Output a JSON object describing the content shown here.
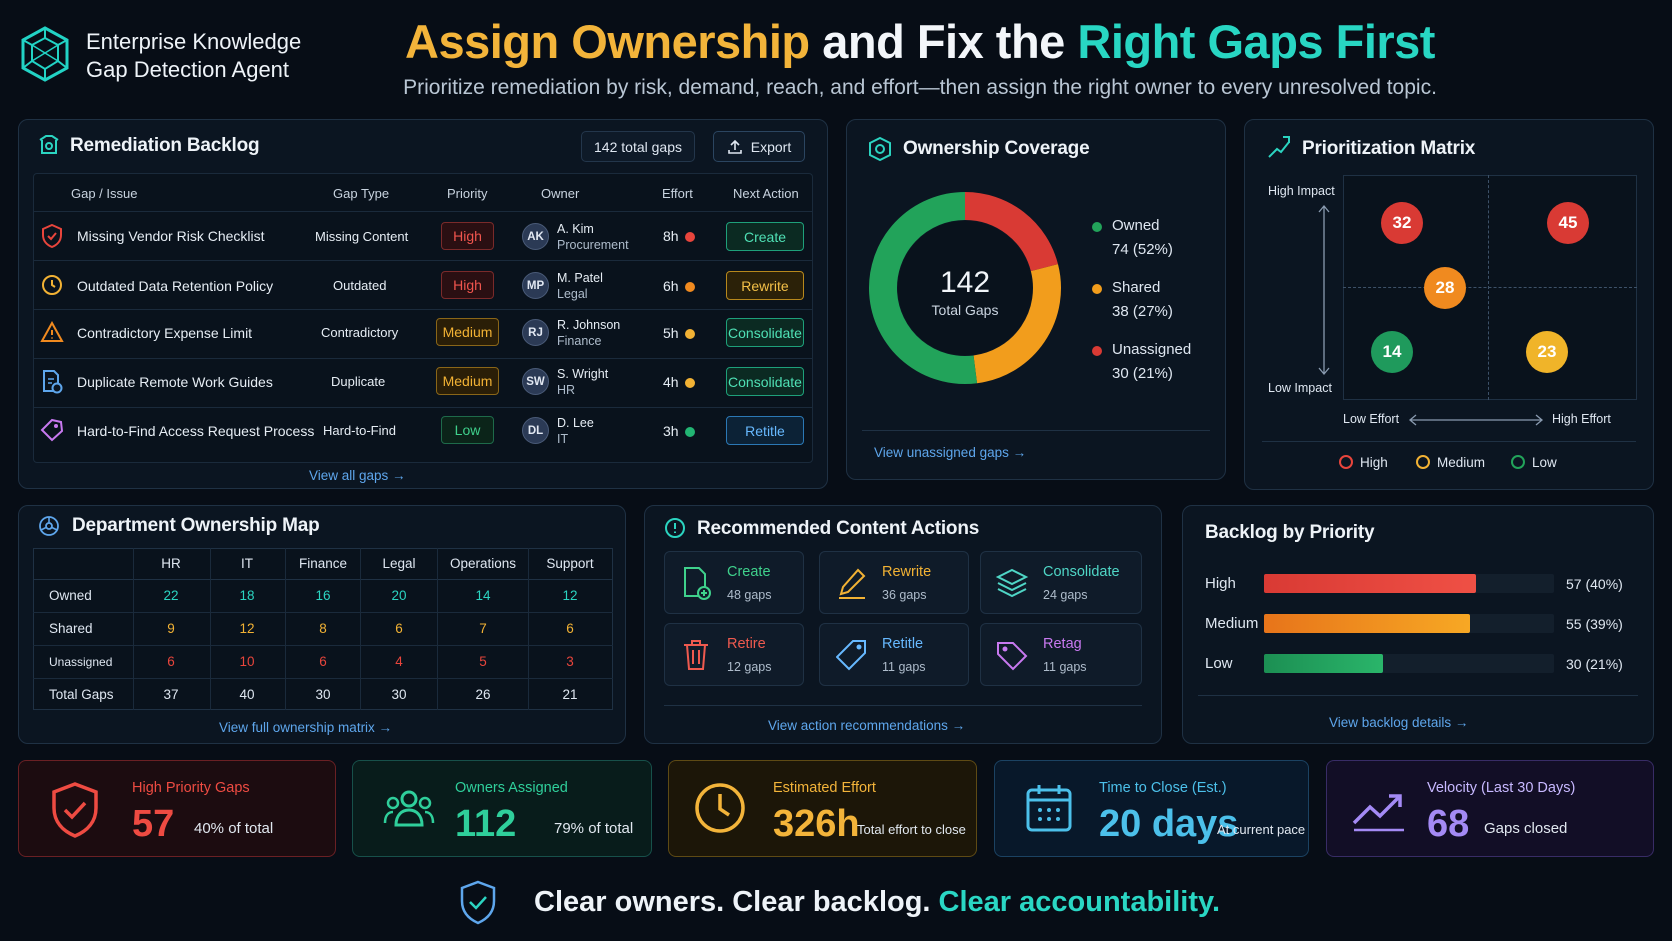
{
  "header": {
    "brand_line1": "Enterprise Knowledge",
    "brand_line2": "Gap Detection Agent",
    "title_part1": "Assign Ownership",
    "title_part2": "and Fix the",
    "title_part3": "Right Gaps First",
    "subtitle": "Prioritize remediation by risk, demand, reach, and effort—then assign the right owner to every unresolved topic."
  },
  "backlog": {
    "title": "Remediation Backlog",
    "total_badge": "142 total gaps",
    "export_label": "Export",
    "columns": [
      "Gap / Issue",
      "Gap Type",
      "Priority",
      "Owner",
      "Effort",
      "Next Action"
    ],
    "rows": [
      {
        "issue": "Missing Vendor Risk Checklist",
        "type": "Missing Content",
        "priority": "High",
        "initials": "AK",
        "owner": "A. Kim",
        "dept": "Procurement",
        "effort": "8h",
        "effort_color": "#e8453c",
        "action": "Create",
        "icon": "shield-alert-icon"
      },
      {
        "issue": "Outdated Data Retention Policy",
        "type": "Outdated",
        "priority": "High",
        "initials": "MP",
        "owner": "M. Patel",
        "dept": "Legal",
        "effort": "6h",
        "effort_color": "#f08a1f",
        "action": "Rewrite",
        "icon": "clock-icon"
      },
      {
        "issue": "Contradictory Expense Limit",
        "type": "Contradictory",
        "priority": "Medium",
        "initials": "RJ",
        "owner": "R. Johnson",
        "dept": "Finance",
        "effort": "5h",
        "effort_color": "#f2b234",
        "action": "Consolidate",
        "icon": "warning-icon"
      },
      {
        "issue": "Duplicate Remote Work Guides",
        "type": "Duplicate",
        "priority": "Medium",
        "initials": "SW",
        "owner": "S. Wright",
        "dept": "HR",
        "effort": "4h",
        "effort_color": "#f2b234",
        "action": "Consolidate",
        "icon": "duplicate-doc-icon"
      },
      {
        "issue": "Hard-to-Find Access Request Process",
        "type": "Hard-to-Find",
        "priority": "Low",
        "initials": "DL",
        "owner": "D. Lee",
        "dept": "IT",
        "effort": "3h",
        "effort_color": "#22b573",
        "action": "Retitle",
        "icon": "tag-search-icon"
      }
    ],
    "view_all": "View all gaps →"
  },
  "ownership": {
    "title": "Ownership Coverage",
    "total": "142",
    "total_label": "Total Gaps",
    "segments": [
      {
        "label": "Owned",
        "value": "74 (52%)",
        "fraction": 0.52,
        "color": "#22a35a"
      },
      {
        "label": "Shared",
        "value": "38 (27%)",
        "fraction": 0.27,
        "color": "#f29d1c"
      },
      {
        "label": "Unassigned",
        "value": "30 (21%)",
        "fraction": 0.21,
        "color": "#d93a34"
      }
    ],
    "link": "View unassigned gaps →"
  },
  "matrix": {
    "title": "Prioritization Matrix",
    "high_impact": "High Impact",
    "low_impact": "Low Impact",
    "low_effort": "Low Effort",
    "high_effort": "High Effort",
    "bubbles": [
      {
        "value": "32",
        "color": "#d93a34"
      },
      {
        "value": "45",
        "color": "#d93a34"
      },
      {
        "value": "28",
        "color": "#f08a1f"
      },
      {
        "value": "14",
        "color": "#1f9a5c"
      },
      {
        "value": "23",
        "color": "#f0b429"
      }
    ],
    "legend": [
      "High",
      "Medium",
      "Low"
    ]
  },
  "department": {
    "title": "Department Ownership Map",
    "columns": [
      "HR",
      "IT",
      "Finance",
      "Legal",
      "Operations",
      "Support"
    ],
    "rows": [
      {
        "label": "Owned",
        "values": [
          "22",
          "18",
          "16",
          "20",
          "14",
          "12"
        ],
        "color": "#2bd4c1"
      },
      {
        "label": "Shared",
        "values": [
          "9",
          "12",
          "8",
          "6",
          "7",
          "6"
        ],
        "color": "#f2b234"
      },
      {
        "label": "Unassigned",
        "values": [
          "6",
          "10",
          "6",
          "4",
          "5",
          "3"
        ],
        "color": "#e8453c"
      },
      {
        "label": "Total Gaps",
        "values": [
          "37",
          "40",
          "30",
          "30",
          "26",
          "21"
        ],
        "color": "#e6edf4"
      }
    ],
    "link": "View full ownership matrix →"
  },
  "actions": {
    "title": "Recommended Content Actions",
    "items": [
      {
        "label": "Create",
        "count": "48 gaps",
        "color": "#3fd18c",
        "icon": "new-doc-icon"
      },
      {
        "label": "Rewrite",
        "count": "36 gaps",
        "color": "#f2b234",
        "icon": "pencil-icon"
      },
      {
        "label": "Consolidate",
        "count": "24 gaps",
        "color": "#4fd6c6",
        "icon": "layers-icon"
      },
      {
        "label": "Retire",
        "count": "12 gaps",
        "color": "#ee5a4f",
        "icon": "trash-icon"
      },
      {
        "label": "Retitle",
        "count": "11 gaps",
        "color": "#67b9ff",
        "icon": "tag-icon"
      },
      {
        "label": "Retag",
        "count": "11 gaps",
        "color": "#c879f0",
        "icon": "label-icon"
      }
    ],
    "link": "View action recommendations →"
  },
  "priority": {
    "title": "Backlog by Priority",
    "bars": [
      {
        "label": "High",
        "value": "57 (40%)",
        "fraction": 0.73,
        "color": "#e8453c"
      },
      {
        "label": "Medium",
        "value": "55 (39%)",
        "fraction": 0.71,
        "color": "#f0961c"
      },
      {
        "label": "Low",
        "value": "30 (21%)",
        "fraction": 0.41,
        "color": "#22a35a"
      }
    ],
    "link": "View backlog details →"
  },
  "kpis": [
    {
      "label": "High Priority Gaps",
      "value": "57",
      "note": "40% of total",
      "color": "#ee4b42"
    },
    {
      "label": "Owners Assigned",
      "value": "112",
      "note": "79% of total",
      "color": "#2fcf9b"
    },
    {
      "label": "Estimated Effort",
      "value": "326h",
      "note": "Total effort to close",
      "color": "#f3b43a"
    },
    {
      "label": "Time to Close (Est.)",
      "value": "20 days",
      "note": "At current pace",
      "color": "#4cc0ea"
    },
    {
      "label": "Velocity (Last 30 Days)",
      "value": "68",
      "note": "Gaps closed",
      "color": "#a48af5"
    }
  ],
  "footer": {
    "part1": "Clear owners. Clear backlog.",
    "part2": "Clear accountability."
  }
}
